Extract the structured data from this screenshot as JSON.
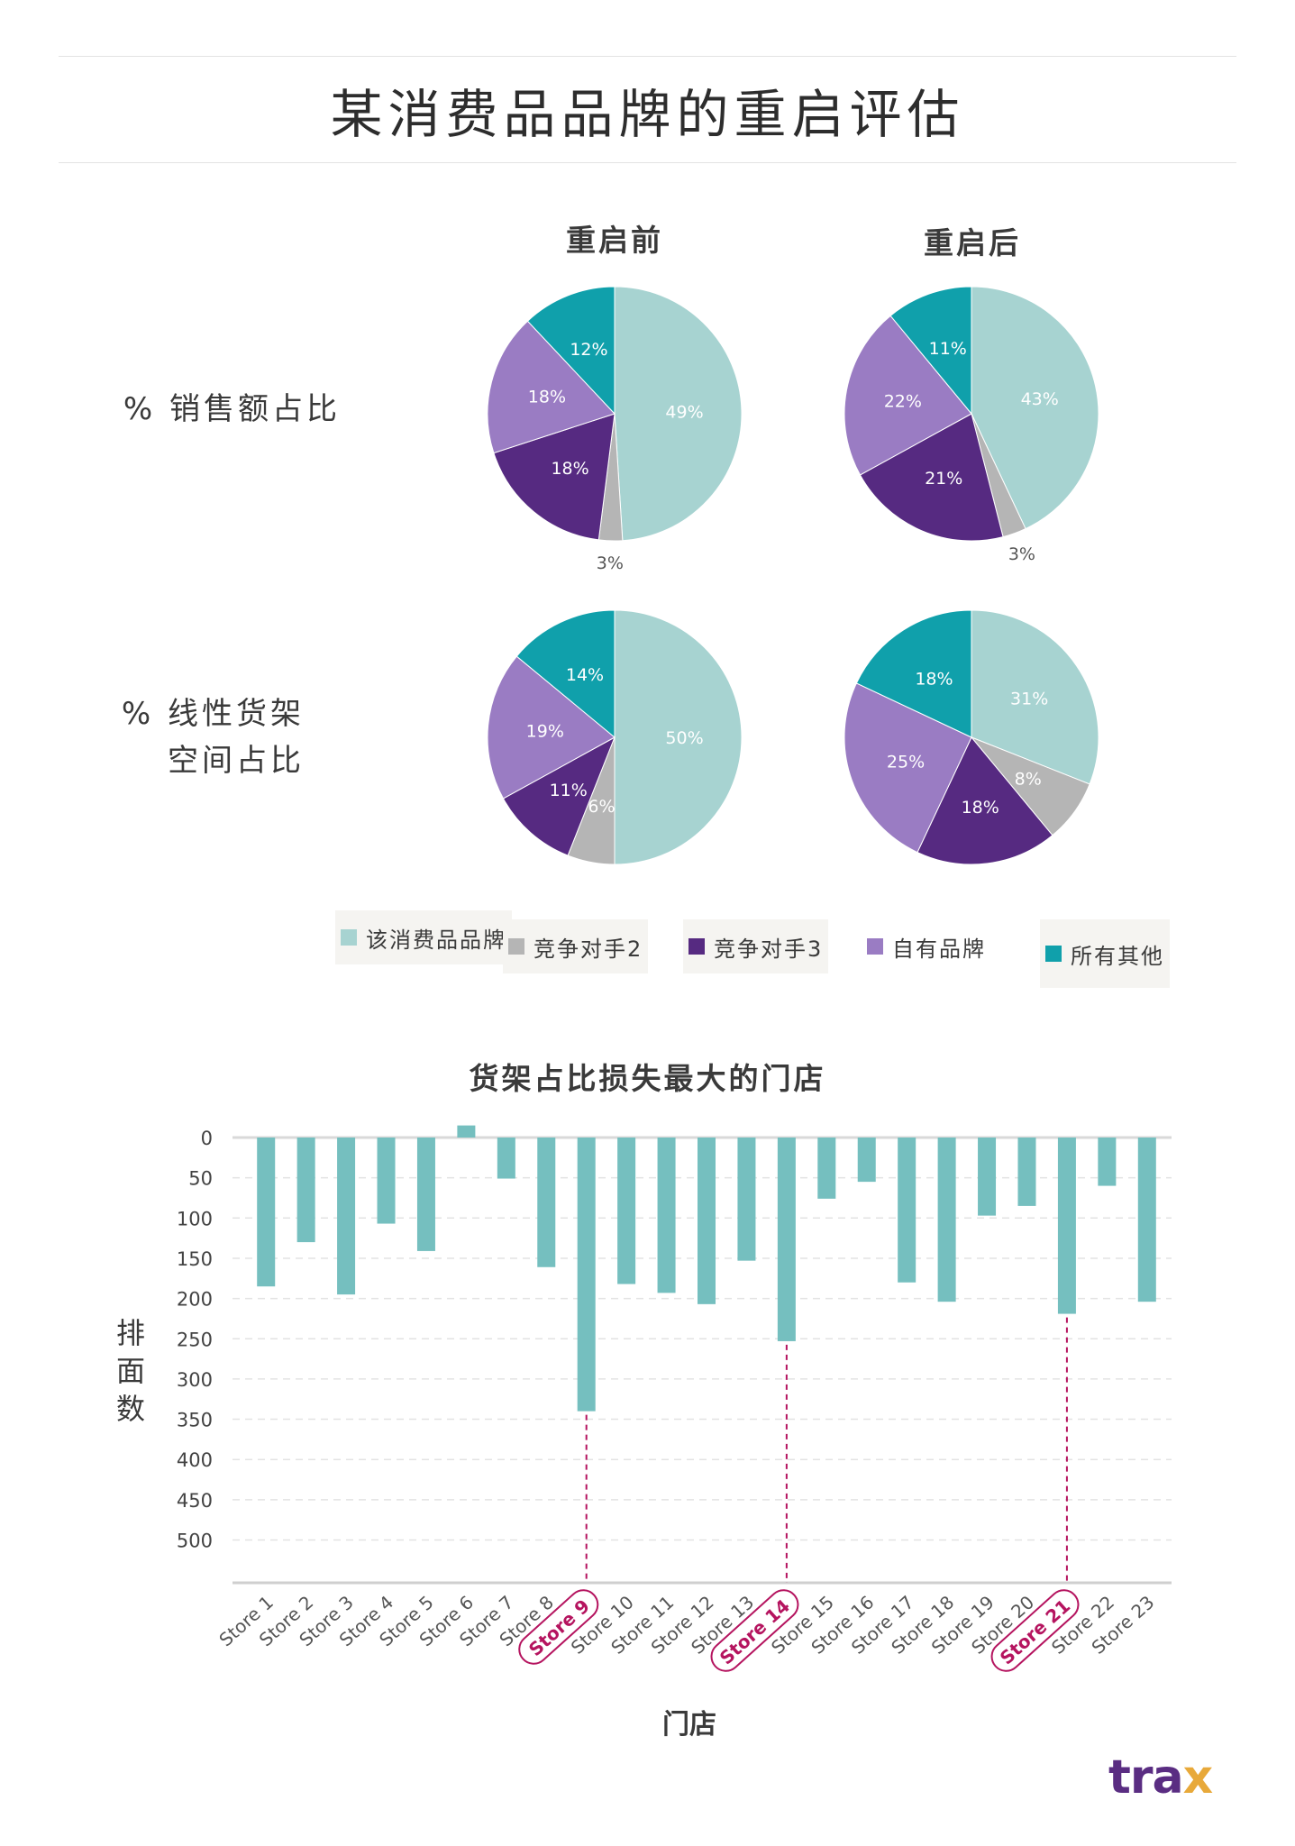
{
  "title": "某消费品品牌的重启评估",
  "pie_section": {
    "column_titles": [
      "重启前",
      "重启后"
    ],
    "row_labels": [
      {
        "line1": "% 销售额占比",
        "line2": ""
      },
      {
        "line1": "% 线性货架",
        "line2": "空间占比"
      }
    ]
  },
  "legend": [
    {
      "label": "该消费品品牌",
      "color": "#a7d3d1"
    },
    {
      "label": "竞争对手2",
      "color": "#b5b5b5"
    },
    {
      "label": "竞争对手3",
      "color": "#562a81"
    },
    {
      "label": "自有品牌",
      "color": "#9a7cc3"
    },
    {
      "label": "所有其他",
      "color": "#10a0ab"
    }
  ],
  "bar_section": {
    "title": "货架占比损失最大的门店",
    "ylabel": "排面数",
    "xlabel": "门店"
  },
  "logo": {
    "text_main": "tra",
    "text_accent": "x"
  },
  "chart_data": [
    {
      "type": "pie",
      "row": "% 销售额占比",
      "column": "重启前",
      "labels": [
        "该消费品品牌",
        "竞争对手2",
        "竞争对手3",
        "自有品牌",
        "所有其他"
      ],
      "values": [
        49,
        3,
        18,
        18,
        12
      ],
      "value_labels": [
        "49%",
        "3%",
        "18%",
        "18%",
        "12%"
      ]
    },
    {
      "type": "pie",
      "row": "% 销售额占比",
      "column": "重启后",
      "labels": [
        "该消费品品牌",
        "竞争对手2",
        "竞争对手3",
        "自有品牌",
        "所有其他"
      ],
      "values": [
        43,
        3,
        21,
        22,
        11
      ],
      "value_labels": [
        "43%",
        "3%",
        "21%",
        "22%",
        "11%"
      ]
    },
    {
      "type": "pie",
      "row": "% 线性货架空间占比",
      "column": "重启前",
      "labels": [
        "该消费品品牌",
        "竞争对手2",
        "竞争对手3",
        "自有品牌",
        "所有其他"
      ],
      "values": [
        50,
        6,
        11,
        19,
        14
      ],
      "value_labels": [
        "50%",
        "6%",
        "11%",
        "19%",
        "14%"
      ]
    },
    {
      "type": "pie",
      "row": "% 线性货架空间占比",
      "column": "重启后",
      "labels": [
        "该消费品品牌",
        "竞争对手2",
        "竞争对手3",
        "自有品牌",
        "所有其他"
      ],
      "values": [
        31,
        8,
        18,
        25,
        18
      ],
      "value_labels": [
        "31%",
        "8%",
        "18%",
        "25%",
        "18%"
      ]
    },
    {
      "type": "bar",
      "title": "货架占比损失最大的门店",
      "xlabel": "门店",
      "ylabel": "排面数",
      "categories": [
        "Store 1",
        "Store 2",
        "Store 3",
        "Store 4",
        "Store 5",
        "Store 6",
        "Store 7",
        "Store 8",
        "Store 9",
        "Store 10",
        "Store 11",
        "Store 12",
        "Store 13",
        "Store 14",
        "Store 15",
        "Store 16",
        "Store 17",
        "Store 18",
        "Store 19",
        "Store 20",
        "Store 21",
        "Store 22",
        "Store 23"
      ],
      "values": [
        -185,
        -130,
        -195,
        -107,
        -141,
        15,
        -51,
        -161,
        -340,
        -182,
        -193,
        -207,
        -153,
        -253,
        -76,
        -55,
        -180,
        -204,
        -97,
        -85,
        -219,
        -60,
        -204
      ],
      "highlighted": [
        "Store 9",
        "Store 14",
        "Store 21"
      ],
      "yticks": [
        0,
        50,
        100,
        150,
        200,
        250,
        300,
        350,
        400,
        450,
        500
      ],
      "ytick_labels": [
        "0",
        "50",
        "100",
        "150",
        "200",
        "250",
        "300",
        "350",
        "400",
        "450",
        "500"
      ],
      "ylim": [
        -550,
        20
      ],
      "y_inverted_labels": true,
      "grid": true,
      "bar_color": "#75bfbf",
      "highlight_color": "#b5145f"
    }
  ]
}
